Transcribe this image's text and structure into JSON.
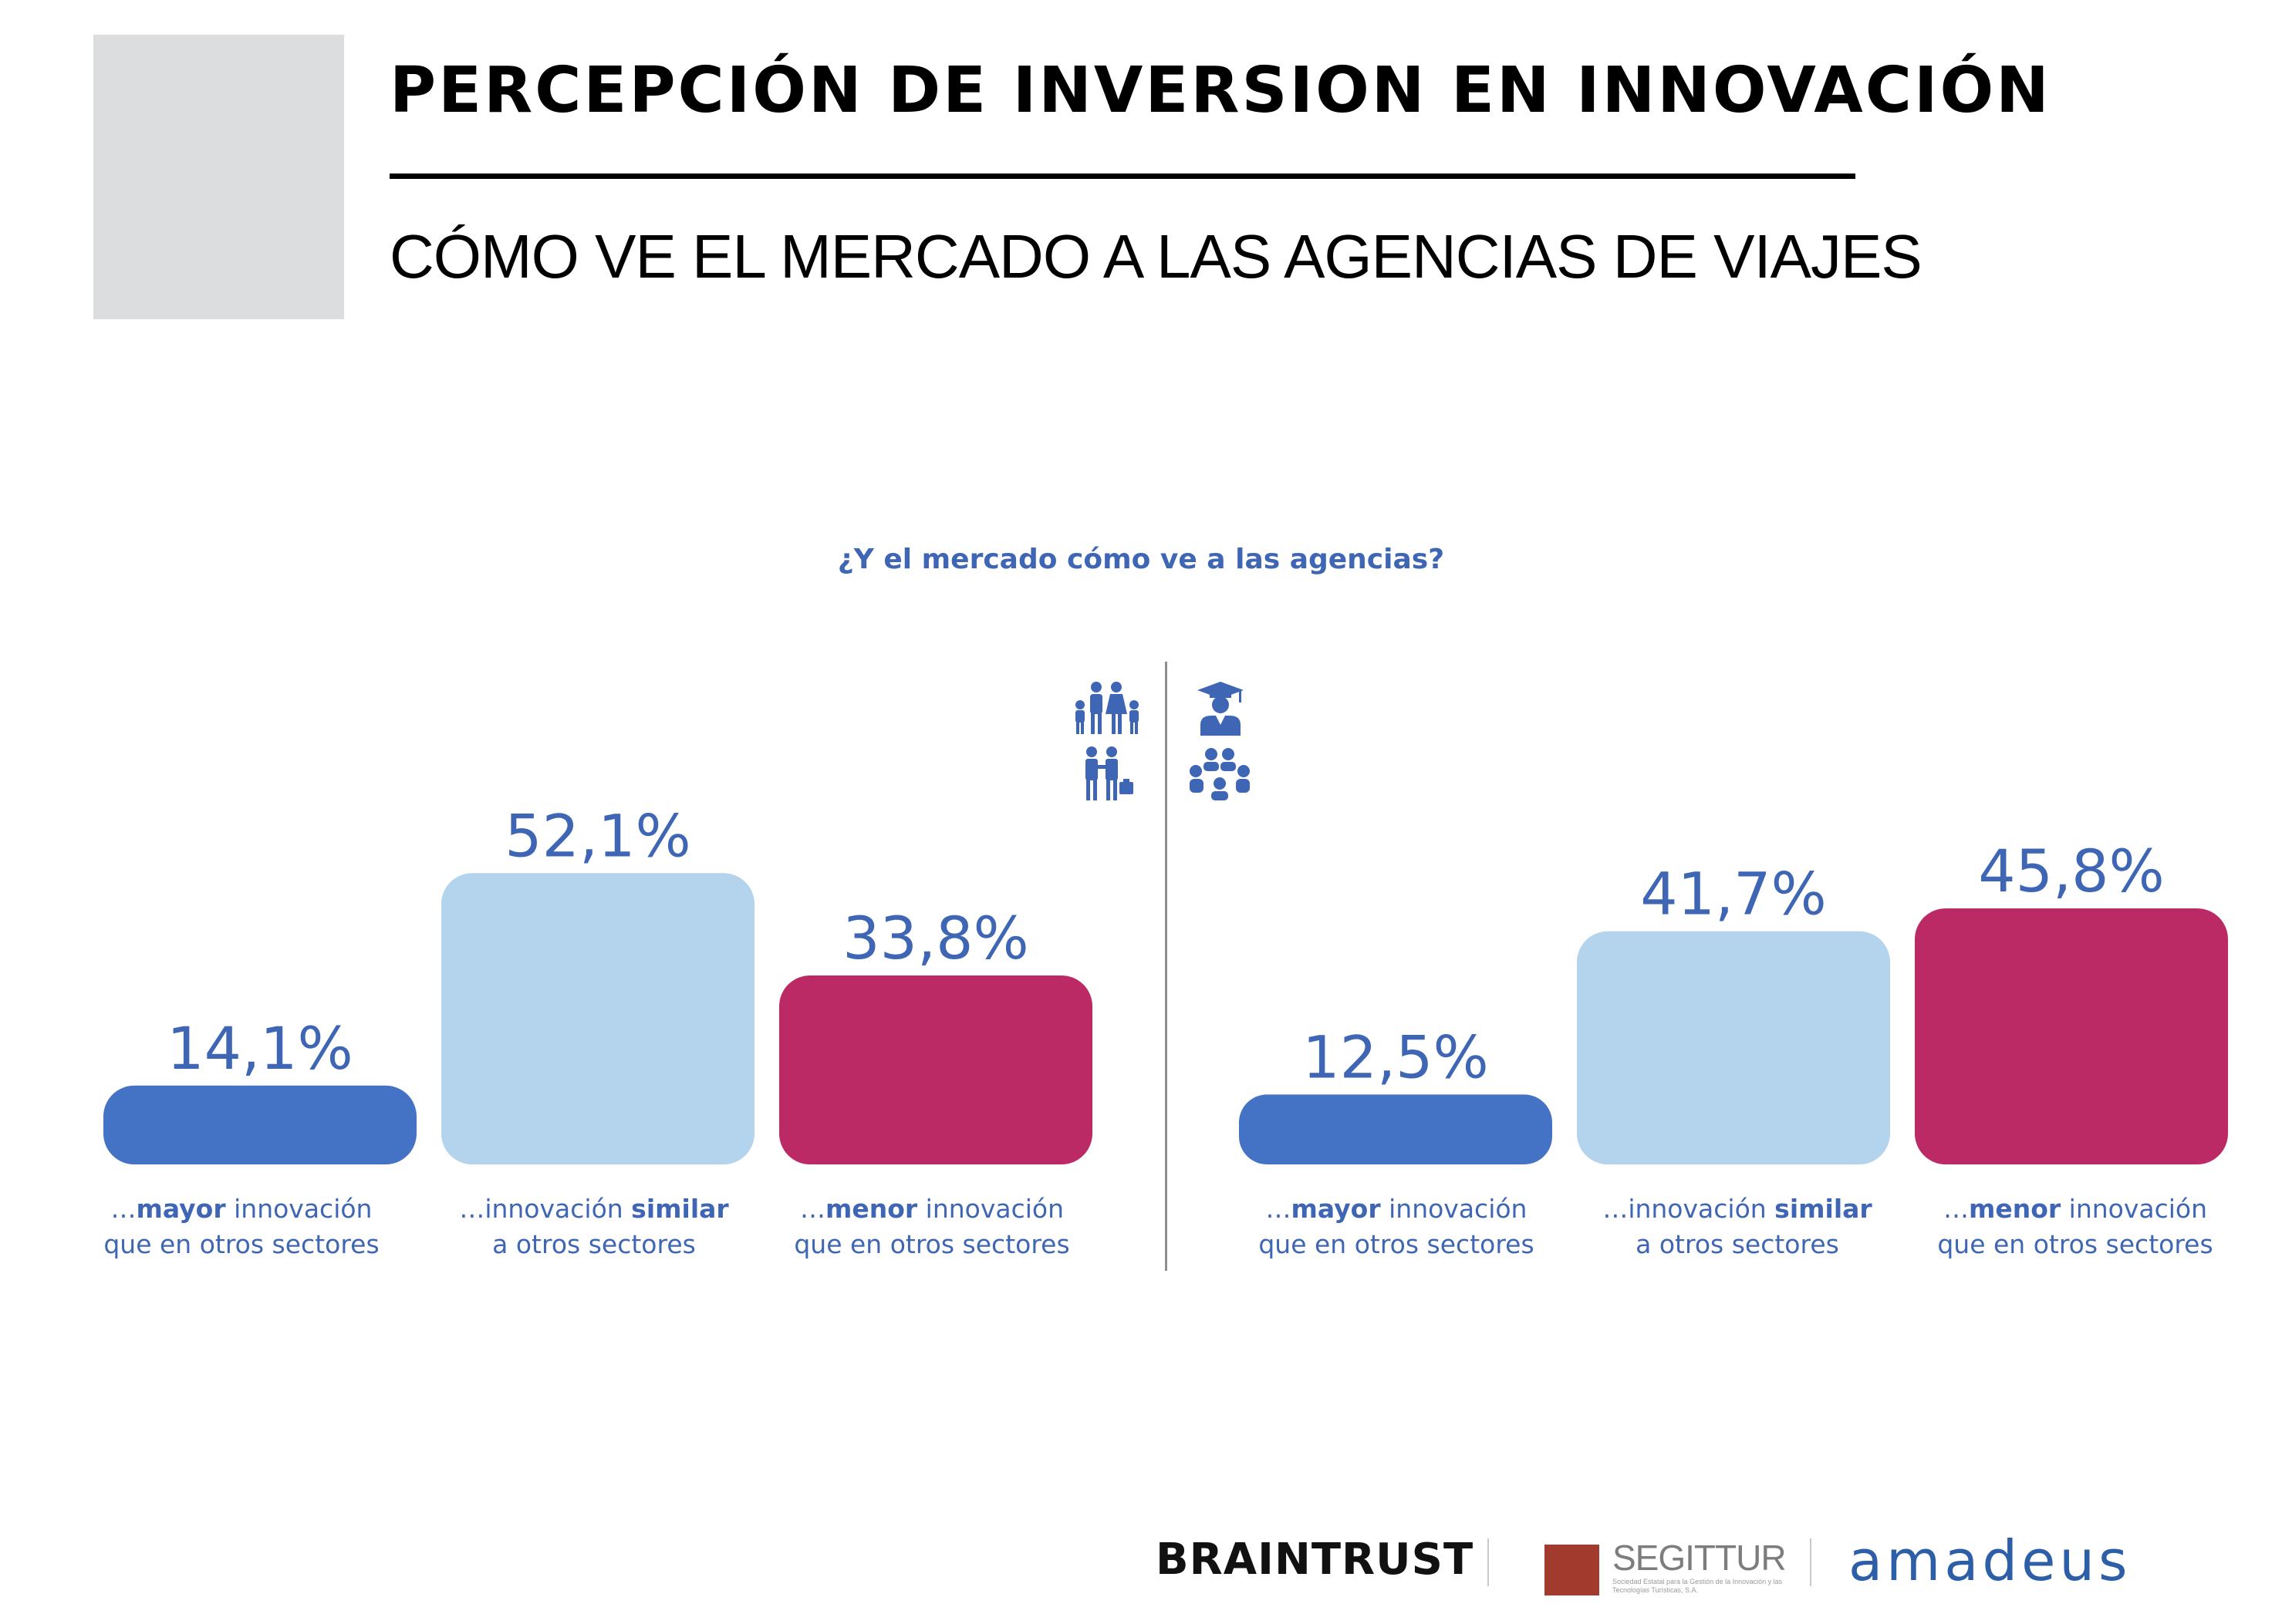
{
  "header": {
    "title": "PERCEPCIÓN DE INVERSION EN INNOVACIÓN",
    "subtitle": "CÓMO VE EL MERCADO A LAS AGENCIAS DE VIAJES"
  },
  "chart_data": {
    "type": "bar",
    "title": "¿Y el mercado cómo ve a las agencias?",
    "panels": [
      {
        "icons": [
          "family-icon",
          "business-people-icon"
        ],
        "categories": [
          {
            "prefix": "…",
            "bold": "mayor",
            "after": " innovación",
            "line2": "que en otros sectores",
            "color": "#4472c4",
            "value": 14.1,
            "value_label": "14,1%"
          },
          {
            "prefix": "…innovación ",
            "bold": "similar",
            "after": "",
            "line2": "a otros sectores",
            "color": "#b4d3ec",
            "value": 52.1,
            "value_label": "52,1%"
          },
          {
            "prefix": "…",
            "bold": "menor",
            "after": " innovación",
            "line2": "que en otros sectores",
            "color": "#bc2a66",
            "value": 33.8,
            "value_label": "33,8%"
          }
        ]
      },
      {
        "icons": [
          "graduate-icon",
          "group-meeting-icon"
        ],
        "categories": [
          {
            "prefix": "…",
            "bold": "mayor",
            "after": " innovación",
            "line2": "que en otros sectores",
            "color": "#4472c4",
            "value": 12.5,
            "value_label": "12,5%"
          },
          {
            "prefix": "…innovación ",
            "bold": "similar",
            "after": "",
            "line2": "a otros sectores",
            "color": "#b4d3ec",
            "value": 41.7,
            "value_label": "41,7%"
          },
          {
            "prefix": "…",
            "bold": "menor",
            "after": " innovación",
            "line2": "que en otros sectores",
            "color": "#bc2a66",
            "value": 45.8,
            "value_label": "45,8%"
          }
        ]
      }
    ]
  },
  "footer": {
    "braintrust": "BRAINTRUST",
    "segittur": "SEGITTUR",
    "segittur_tagline": "Sociedad Estatal para la Gestión de la Innovación y las Tecnologías Turísticas, S.A.",
    "amadeus": "amadeus"
  }
}
